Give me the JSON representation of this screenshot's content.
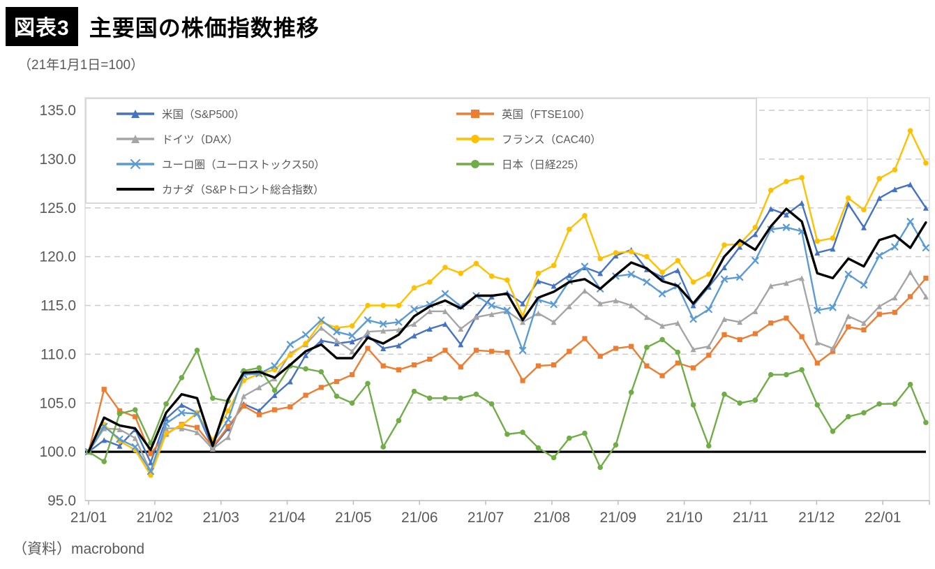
{
  "header": {
    "badge": "図表3",
    "title": "主要国の株価指数推移",
    "subtitle": "（21年1月1日=100）",
    "source": "（資料）macrobond"
  },
  "chart_data": {
    "type": "line",
    "title": "主要国の株価指数推移",
    "subtitle_note": "21年1月1日=100",
    "ylabel": "",
    "xlabel": "",
    "ylim": [
      95.0,
      135.0
    ],
    "y_ticks": [
      "135.0",
      "130.0",
      "125.0",
      "120.0",
      "115.0",
      "110.0",
      "105.0",
      "100.0",
      "95.0"
    ],
    "y_tick_values": [
      135,
      130,
      125,
      120,
      115,
      110,
      105,
      100,
      95
    ],
    "x_ticks": [
      "21/01",
      "21/02",
      "21/03",
      "21/04",
      "21/05",
      "21/06",
      "21/07",
      "21/08",
      "21/09",
      "21/10",
      "21/11",
      "21/12",
      "22/01"
    ],
    "x_total_months": 12.65,
    "baseline_value": 100,
    "grid": "dashed-horizontal",
    "legend_position": "top-left-inside",
    "axis_color": "#bfbfbf",
    "grid_color": "#cccccc",
    "series": [
      {
        "name": "米国（S&P500）",
        "color": "#4472C4",
        "marker": "triangle",
        "width": 2.4,
        "values": [
          100,
          101.2,
          100.6,
          102.3,
          98.9,
          103.4,
          104.8,
          104.0,
          100.4,
          102.4,
          104.9,
          104.2,
          105.8,
          107.2,
          109.9,
          111.4,
          111.1,
          111.3,
          111.9,
          110.6,
          110.9,
          111.9,
          112.6,
          113.1,
          111.0,
          113.9,
          115.9,
          116.3,
          115.2,
          117.5,
          117.0,
          118.1,
          118.9,
          118.3,
          120.1,
          120.7,
          118.7,
          117.9,
          118.6,
          115.0,
          116.9,
          118.9,
          121.0,
          122.3,
          124.9,
          124.3,
          125.5,
          120.4,
          120.8,
          125.4,
          123.0,
          126.0,
          126.9,
          127.4,
          125.0
        ]
      },
      {
        "name": "英国（FTSE100）",
        "color": "#ED7D31",
        "marker": "square",
        "width": 2.4,
        "values": [
          100,
          106.4,
          104.2,
          103.6,
          99.8,
          101.8,
          102.8,
          102.5,
          100.5,
          102.6,
          104.7,
          103.8,
          104.3,
          104.6,
          105.8,
          106.6,
          107.2,
          107.9,
          110.6,
          108.8,
          108.4,
          108.9,
          109.5,
          110.4,
          108.7,
          110.4,
          110.3,
          110.2,
          107.3,
          108.8,
          108.9,
          110.3,
          111.6,
          109.8,
          110.6,
          110.8,
          108.8,
          107.8,
          109.1,
          108.6,
          109.9,
          112.0,
          111.5,
          112.1,
          113.2,
          113.7,
          111.8,
          109.1,
          110.3,
          112.8,
          112.5,
          114.1,
          114.3,
          115.9,
          117.8
        ]
      },
      {
        "name": "ドイツ（DAX）",
        "color": "#A5A5A5",
        "marker": "triangle",
        "width": 2.4,
        "values": [
          100,
          102.4,
          102.3,
          101.4,
          98.0,
          102.4,
          102.4,
          102.0,
          100.3,
          101.5,
          105.7,
          106.6,
          107.5,
          110.1,
          111.0,
          112.7,
          111.4,
          110.3,
          112.3,
          112.4,
          112.5,
          113.1,
          114.4,
          114.4,
          112.6,
          113.8,
          114.1,
          114.4,
          113.3,
          114.2,
          113.3,
          114.9,
          116.5,
          115.2,
          115.5,
          115.0,
          113.8,
          112.9,
          113.2,
          110.5,
          110.8,
          113.6,
          113.3,
          114.4,
          117.0,
          117.3,
          117.8,
          111.2,
          110.6,
          113.9,
          113.2,
          114.9,
          115.8,
          118.4,
          115.9
        ]
      },
      {
        "name": "フランス（CAC40）",
        "color": "#FFC000",
        "marker": "circle",
        "width": 2.4,
        "values": [
          100,
          102.8,
          101.1,
          100.2,
          97.6,
          101.9,
          102.7,
          104.0,
          101.2,
          104.2,
          107.3,
          108.0,
          108.4,
          109.9,
          111.1,
          113.3,
          112.7,
          112.9,
          115.0,
          115.0,
          115.0,
          116.8,
          117.4,
          118.9,
          118.3,
          119.3,
          118.0,
          117.6,
          113.9,
          118.3,
          119.1,
          122.8,
          124.2,
          119.8,
          120.4,
          120.5,
          120.0,
          118.4,
          119.6,
          117.4,
          118.2,
          121.2,
          121.3,
          123.0,
          126.8,
          127.7,
          128.1,
          121.6,
          121.9,
          126.0,
          124.8,
          128.0,
          128.9,
          132.9,
          129.6
        ]
      },
      {
        "name": "ユーロ圏（ユーロストックス50）",
        "color": "#5B9BD5",
        "marker": "x",
        "width": 2.4,
        "values": [
          100,
          102.6,
          101.3,
          100.5,
          98.0,
          102.9,
          104.0,
          103.9,
          100.9,
          103.3,
          107.9,
          108.0,
          108.8,
          111.0,
          112.0,
          113.5,
          112.3,
          111.9,
          113.5,
          113.1,
          113.3,
          114.6,
          115.1,
          116.2,
          114.9,
          116.0,
          115.0,
          114.5,
          110.4,
          115.6,
          115.1,
          117.5,
          119.0,
          116.7,
          118.0,
          118.2,
          117.4,
          116.2,
          117.0,
          113.6,
          114.6,
          117.7,
          117.9,
          119.6,
          122.8,
          123.0,
          122.6,
          114.5,
          114.8,
          118.2,
          117.1,
          120.1,
          121.0,
          123.6,
          120.9
        ]
      },
      {
        "name": "日本（日経225）",
        "color": "#70AD47",
        "marker": "circle",
        "width": 2.4,
        "values": [
          100,
          99.0,
          103.9,
          104.3,
          100.9,
          104.9,
          107.6,
          110.4,
          105.5,
          105.2,
          108.3,
          108.6,
          106.3,
          108.8,
          108.5,
          108.2,
          105.7,
          105.0,
          107.0,
          100.5,
          103.2,
          106.2,
          105.5,
          105.5,
          105.5,
          105.9,
          104.9,
          101.8,
          102.0,
          100.4,
          99.4,
          101.4,
          101.9,
          98.4,
          100.7,
          106.1,
          110.7,
          111.5,
          110.2,
          104.8,
          100.6,
          105.9,
          105.0,
          105.3,
          107.9,
          107.9,
          108.4,
          104.8,
          102.1,
          103.6,
          104.0,
          104.9,
          104.9,
          106.9,
          103.0
        ]
      },
      {
        "name": "カナダ（S&Pトロント総合指数）",
        "color": "#000000",
        "marker": "none",
        "width": 3.4,
        "values": [
          100,
          103.5,
          102.7,
          102.4,
          100.2,
          104.0,
          105.9,
          105.5,
          100.6,
          105.4,
          108.1,
          108.2,
          107.6,
          108.9,
          110.3,
          111.0,
          109.6,
          109.6,
          111.7,
          111.1,
          112.0,
          113.9,
          114.9,
          115.5,
          114.7,
          116.0,
          116.0,
          116.2,
          113.5,
          115.8,
          116.4,
          117.4,
          117.7,
          116.7,
          118.1,
          119.4,
          118.8,
          117.5,
          117.0,
          115.2,
          117.1,
          120.0,
          121.7,
          120.7,
          123.1,
          124.9,
          123.6,
          118.3,
          117.8,
          119.8,
          119.0,
          121.7,
          122.2,
          120.9,
          123.5
        ]
      }
    ]
  }
}
